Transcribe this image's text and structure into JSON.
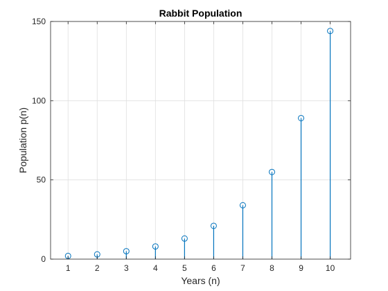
{
  "chart_data": {
    "type": "stem",
    "title": "Rabbit Population",
    "xlabel": "Years (n)",
    "ylabel": "Population p(n)",
    "x": [
      1,
      2,
      3,
      4,
      5,
      6,
      7,
      8,
      9,
      10
    ],
    "y": [
      2,
      3,
      5,
      8,
      13,
      21,
      34,
      55,
      89,
      144
    ],
    "xlim": [
      0.4,
      10.7
    ],
    "ylim": [
      0,
      150
    ],
    "xticks": [
      1,
      2,
      3,
      4,
      5,
      6,
      7,
      8,
      9,
      10
    ],
    "yticks": [
      0,
      50,
      100,
      150
    ],
    "grid": true,
    "colors": {
      "stem": "#0072BD",
      "axes": "#262626",
      "grid": "#dfdfdf"
    }
  }
}
